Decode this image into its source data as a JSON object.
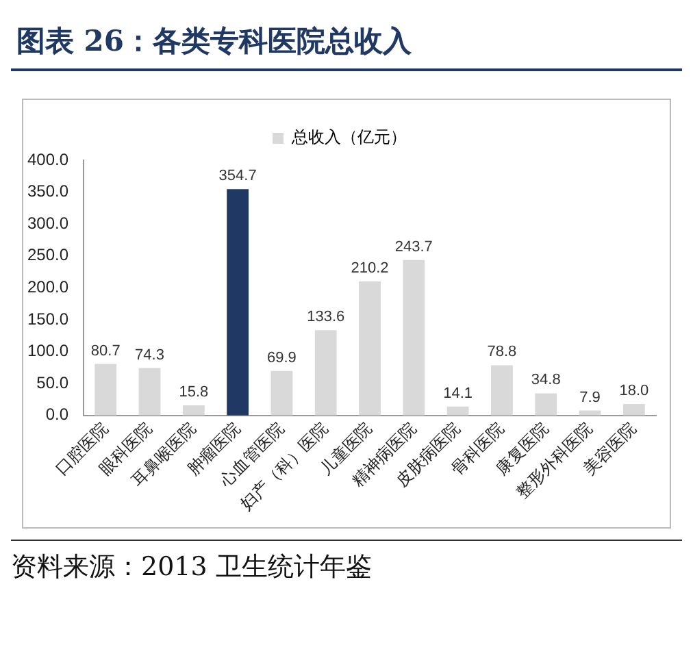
{
  "chart_data": {
    "type": "bar",
    "title": "图表 26：各类专科医院总收入",
    "categories": [
      "口腔医院",
      "眼科医院",
      "耳鼻喉医院",
      "肿瘤医院",
      "心血管医院",
      "妇产（科）医院",
      "儿童医院",
      "精神病医院",
      "皮肤病医院",
      "骨科医院",
      "康复医院",
      "整形外科医院",
      "美容医院"
    ],
    "series": [
      {
        "name": "总收入（亿元）",
        "color": "#d9d9d9",
        "colors": [
          "#d9d9d9",
          "#d9d9d9",
          "#d9d9d9",
          "#1f3864",
          "#d9d9d9",
          "#d9d9d9",
          "#d9d9d9",
          "#d9d9d9",
          "#d9d9d9",
          "#d9d9d9",
          "#d9d9d9",
          "#d9d9d9",
          "#d9d9d9"
        ],
        "values": [
          80.7,
          74.3,
          15.8,
          354.7,
          69.9,
          133.6,
          210.2,
          243.7,
          14.1,
          78.8,
          34.8,
          7.9,
          18.0
        ],
        "value_labels": [
          "80.7",
          "74.3",
          "15.8",
          "354.7",
          "69.9",
          "133.6",
          "210.2",
          "243.7",
          "14.1",
          "78.8",
          "34.8",
          "7.9",
          "18.0"
        ]
      }
    ],
    "ylim": [
      0,
      400
    ],
    "yticks": [
      {
        "value": 0,
        "label": "0.0"
      },
      {
        "value": 50,
        "label": "50.0"
      },
      {
        "value": 100,
        "label": "100.0"
      },
      {
        "value": 150,
        "label": "150.0"
      },
      {
        "value": 200,
        "label": "200.0"
      },
      {
        "value": 250,
        "label": "250.0"
      },
      {
        "value": 300,
        "label": "300.0"
      },
      {
        "value": 350,
        "label": "350.0"
      },
      {
        "value": 400,
        "label": "400.0"
      }
    ],
    "grid": false,
    "legend": "top",
    "annotations": [
      "资料来源：2013 卫生统计年鉴"
    ]
  }
}
